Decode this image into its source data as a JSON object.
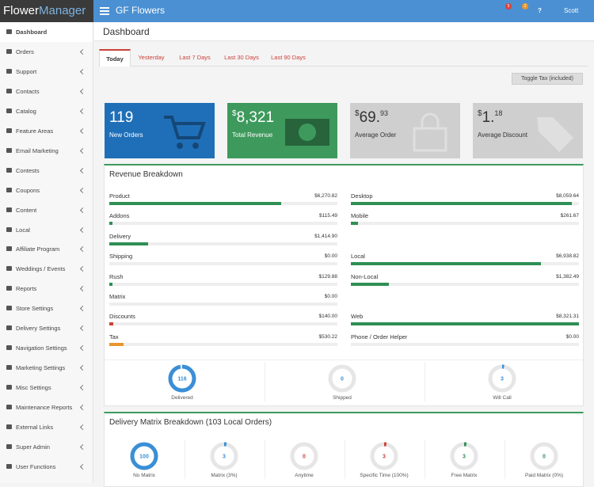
{
  "brand": {
    "first": "Flower",
    "second": "Manager"
  },
  "header": {
    "title": "GF Flowers",
    "badges": [
      "5",
      "2"
    ],
    "help": "?",
    "user": "Scott"
  },
  "sidebar": [
    "Dashboard",
    "Orders",
    "Support",
    "Contacts",
    "Catalog",
    "Feature Areas",
    "Email Marketing",
    "Contests",
    "Coupons",
    "Content",
    "Local",
    "Affiliate Program",
    "Weddings / Events",
    "Reports",
    "Store Settings",
    "Delivery Settings",
    "Navigation Settings",
    "Marketing Settings",
    "Misc Settings",
    "Maintenance Reports",
    "External Links",
    "Super Admin",
    "User Functions"
  ],
  "page": {
    "title": "Dashboard",
    "tabs": [
      "Today",
      "Yesterday",
      "Last 7 Days",
      "Last 30 Days",
      "Last 90 Days"
    ],
    "toggle": "Toggle Tax (included)"
  },
  "cards": [
    {
      "value": "119",
      "label": "New Orders",
      "color": "#1f6fb8"
    },
    {
      "prefix": "$",
      "value": "8,321",
      "label": "Total Revenue",
      "color": "#3d9a5c"
    },
    {
      "prefix": "$",
      "value": "69.",
      "cents": "93",
      "label": "Average Order",
      "color": "#cfcfcf"
    },
    {
      "prefix": "$",
      "value": "1.",
      "cents": "18",
      "label": "Average Discount",
      "color": "#cfcfcf"
    }
  ],
  "revenue": {
    "title": "Revenue Breakdown",
    "left": [
      {
        "name": "Product",
        "value": 6270.82,
        "label": "$6,270.82",
        "color": "#2f8f55"
      },
      {
        "name": "Addons",
        "value": 115.49,
        "label": "$115.49",
        "color": "#2f8f55"
      },
      {
        "name": "Delivery",
        "value": 1414.9,
        "label": "$1,414.90",
        "color": "#2f8f55"
      },
      {
        "name": "Shipping",
        "value": 0,
        "label": "$0.00",
        "color": "#2f8f55"
      },
      {
        "name": "Rush",
        "value": 129.88,
        "label": "$129.88",
        "color": "#2f8f55"
      },
      {
        "name": "Matrix",
        "value": 0,
        "label": "$0.00",
        "color": "#2f8f55"
      },
      {
        "name": "Discounts",
        "value": 140,
        "label": "$140.00",
        "color": "#c9423a"
      },
      {
        "name": "Tax",
        "value": 530.22,
        "label": "$530.22",
        "color": "#e8962c"
      }
    ],
    "right": [
      [
        {
          "name": "Desktop",
          "value": 8059.64,
          "label": "$8,059.64",
          "color": "#2f8f55"
        },
        {
          "name": "Mobile",
          "value": 261.67,
          "label": "$261.67",
          "color": "#2f8f55"
        }
      ],
      [
        {
          "name": "Local",
          "value": 6938.82,
          "label": "$6,938.82",
          "color": "#2f8f55"
        },
        {
          "name": "Non-Local",
          "value": 1382.49,
          "label": "$1,382.49",
          "color": "#2f8f55"
        }
      ],
      [
        {
          "name": "Web",
          "value": 8321.31,
          "label": "$8,321.31",
          "color": "#2f8f55"
        },
        {
          "name": "Phone / Order Helper",
          "value": 0,
          "label": "$0.00",
          "color": "#2f8f55"
        }
      ]
    ]
  },
  "fulfillment": [
    {
      "value": 116,
      "label": "Delivered",
      "color": "#3a8fd6"
    },
    {
      "value": 0,
      "label": "Shipped",
      "color": "#3a8fd6"
    },
    {
      "value": 3,
      "label": "Will Call",
      "color": "#3a8fd6"
    }
  ],
  "matrix": {
    "title": "Delivery Matrix Breakdown (103 Local Orders)",
    "items": [
      {
        "value": 100,
        "label": "No Matrix",
        "color": "#3a8fd6"
      },
      {
        "value": 3,
        "label": "Matrix (3%)",
        "color": "#3a8fd6"
      },
      {
        "value": 0,
        "label": "Anytime",
        "color": "#c9423a"
      },
      {
        "value": 3,
        "label": "Specific Time (100%)",
        "color": "#c9423a"
      },
      {
        "value": 3,
        "label": "Free Matrix",
        "color": "#2f8f55"
      },
      {
        "value": 0,
        "label": "Paid Matrix (0%)",
        "color": "#2f8f55"
      }
    ]
  }
}
